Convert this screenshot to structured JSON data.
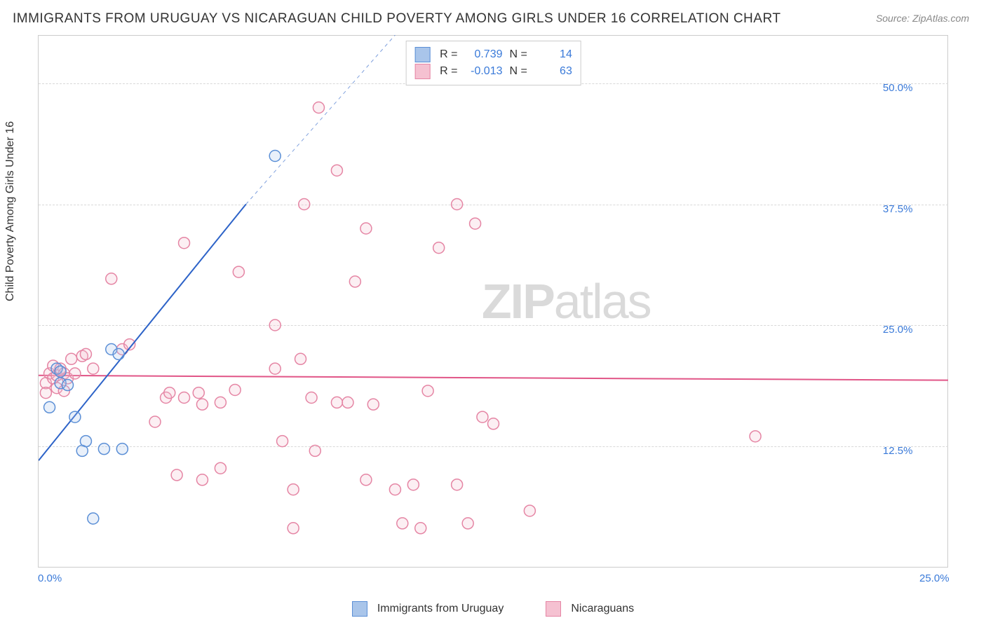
{
  "title": "IMMIGRANTS FROM URUGUAY VS NICARAGUAN CHILD POVERTY AMONG GIRLS UNDER 16 CORRELATION CHART",
  "source": "Source: ZipAtlas.com",
  "ylabel": "Child Poverty Among Girls Under 16",
  "watermark_bold": "ZIP",
  "watermark_rest": "atlas",
  "chart": {
    "type": "scatter",
    "xlim": [
      0,
      25
    ],
    "ylim": [
      0,
      55
    ],
    "xtick_labels": [
      {
        "v": 0,
        "label": "0.0%"
      },
      {
        "v": 25,
        "label": "25.0%"
      }
    ],
    "ytick_labels": [
      {
        "v": 50,
        "label": "50.0%"
      },
      {
        "v": 37.5,
        "label": "37.5%"
      },
      {
        "v": 25,
        "label": "25.0%"
      },
      {
        "v": 12.5,
        "label": "12.5%"
      }
    ],
    "gridlines_h": [
      50,
      37.5,
      25,
      12.5
    ],
    "gridlines_v": [],
    "background_color": "#ffffff",
    "grid_color": "#d8d8d8",
    "axis_color": "#cccccc",
    "tick_label_color": "#3a7ad9",
    "marker_radius": 8,
    "marker_stroke_width": 1.5,
    "marker_fill_opacity": 0.25,
    "series": [
      {
        "name": "Immigrants from Uruguay",
        "color_stroke": "#5b8fd6",
        "color_fill": "#a9c5ea",
        "R": "0.739",
        "N": "14",
        "trend": {
          "x1": 0,
          "y1": 11.0,
          "x2": 5.7,
          "y2": 37.5,
          "color": "#2d63c8",
          "width": 2,
          "dash_extend": {
            "x2": 9.8,
            "y2": 55
          }
        },
        "points": [
          {
            "x": 0.3,
            "y": 16.5
          },
          {
            "x": 0.5,
            "y": 20.5
          },
          {
            "x": 0.6,
            "y": 19.0
          },
          {
            "x": 0.6,
            "y": 20.2
          },
          {
            "x": 0.8,
            "y": 18.8
          },
          {
            "x": 1.0,
            "y": 15.5
          },
          {
            "x": 1.2,
            "y": 12.0
          },
          {
            "x": 1.3,
            "y": 13.0
          },
          {
            "x": 1.5,
            "y": 5.0
          },
          {
            "x": 1.8,
            "y": 12.2
          },
          {
            "x": 2.0,
            "y": 22.5
          },
          {
            "x": 2.2,
            "y": 22.0
          },
          {
            "x": 2.3,
            "y": 12.2
          },
          {
            "x": 6.5,
            "y": 42.5
          }
        ]
      },
      {
        "name": "Nicaraguans",
        "color_stroke": "#e585a4",
        "color_fill": "#f5c1d1",
        "R": "-0.013",
        "N": "63",
        "trend": {
          "x1": 0,
          "y1": 19.8,
          "x2": 25,
          "y2": 19.3,
          "color": "#e15587",
          "width": 2
        },
        "points": [
          {
            "x": 0.2,
            "y": 19.0
          },
          {
            "x": 0.2,
            "y": 18.0
          },
          {
            "x": 0.3,
            "y": 20.0
          },
          {
            "x": 0.4,
            "y": 20.8
          },
          {
            "x": 0.4,
            "y": 19.5
          },
          {
            "x": 0.5,
            "y": 18.5
          },
          {
            "x": 0.5,
            "y": 19.8
          },
          {
            "x": 0.6,
            "y": 20.5
          },
          {
            "x": 0.7,
            "y": 20.0
          },
          {
            "x": 0.7,
            "y": 18.2
          },
          {
            "x": 0.8,
            "y": 19.5
          },
          {
            "x": 0.9,
            "y": 21.5
          },
          {
            "x": 1.0,
            "y": 20.0
          },
          {
            "x": 1.2,
            "y": 21.8
          },
          {
            "x": 1.3,
            "y": 22.0
          },
          {
            "x": 1.5,
            "y": 20.5
          },
          {
            "x": 2.0,
            "y": 29.8
          },
          {
            "x": 2.3,
            "y": 22.5
          },
          {
            "x": 2.5,
            "y": 23.0
          },
          {
            "x": 3.2,
            "y": 15.0
          },
          {
            "x": 3.5,
            "y": 17.5
          },
          {
            "x": 3.6,
            "y": 18.0
          },
          {
            "x": 3.8,
            "y": 9.5
          },
          {
            "x": 4.0,
            "y": 33.5
          },
          {
            "x": 4.0,
            "y": 17.5
          },
          {
            "x": 4.4,
            "y": 18.0
          },
          {
            "x": 4.5,
            "y": 16.8
          },
          {
            "x": 4.5,
            "y": 9.0
          },
          {
            "x": 5.0,
            "y": 10.2
          },
          {
            "x": 5.0,
            "y": 17.0
          },
          {
            "x": 5.4,
            "y": 18.3
          },
          {
            "x": 5.5,
            "y": 30.5
          },
          {
            "x": 6.5,
            "y": 20.5
          },
          {
            "x": 6.5,
            "y": 25
          },
          {
            "x": 6.7,
            "y": 13.0
          },
          {
            "x": 7.0,
            "y": 4.0
          },
          {
            "x": 7.0,
            "y": 8.0
          },
          {
            "x": 7.2,
            "y": 21.5
          },
          {
            "x": 7.3,
            "y": 37.5
          },
          {
            "x": 7.5,
            "y": 17.5
          },
          {
            "x": 7.6,
            "y": 12.0
          },
          {
            "x": 7.7,
            "y": 47.5
          },
          {
            "x": 8.2,
            "y": 17.0
          },
          {
            "x": 8.2,
            "y": 41.0
          },
          {
            "x": 8.5,
            "y": 17.0
          },
          {
            "x": 8.7,
            "y": 29.5
          },
          {
            "x": 9.0,
            "y": 35.0
          },
          {
            "x": 9.0,
            "y": 9.0
          },
          {
            "x": 9.2,
            "y": 16.8
          },
          {
            "x": 9.8,
            "y": 8.0
          },
          {
            "x": 10.0,
            "y": 4.5
          },
          {
            "x": 10.3,
            "y": 8.5
          },
          {
            "x": 10.5,
            "y": 4.0
          },
          {
            "x": 10.7,
            "y": 18.2
          },
          {
            "x": 11.0,
            "y": 33
          },
          {
            "x": 11.5,
            "y": 8.5
          },
          {
            "x": 11.5,
            "y": 37.5
          },
          {
            "x": 12.0,
            "y": 35.5
          },
          {
            "x": 12.2,
            "y": 15.5
          },
          {
            "x": 12.5,
            "y": 14.8
          },
          {
            "x": 13.5,
            "y": 5.8
          },
          {
            "x": 19.7,
            "y": 13.5
          },
          {
            "x": 11.8,
            "y": 4.5
          }
        ]
      }
    ]
  },
  "legend_top": {
    "rows": [
      {
        "swatch_fill": "#a9c5ea",
        "swatch_border": "#5b8fd6",
        "R_label": "R  =",
        "R": "0.739",
        "N_label": "N  =",
        "N": "14"
      },
      {
        "swatch_fill": "#f5c1d1",
        "swatch_border": "#e585a4",
        "R_label": "R  =",
        "R": "-0.013",
        "N_label": "N  =",
        "N": "63"
      }
    ]
  },
  "legend_bottom": {
    "items": [
      {
        "swatch_fill": "#a9c5ea",
        "swatch_border": "#5b8fd6",
        "label": "Immigrants from Uruguay"
      },
      {
        "swatch_fill": "#f5c1d1",
        "swatch_border": "#e585a4",
        "label": "Nicaraguans"
      }
    ]
  }
}
